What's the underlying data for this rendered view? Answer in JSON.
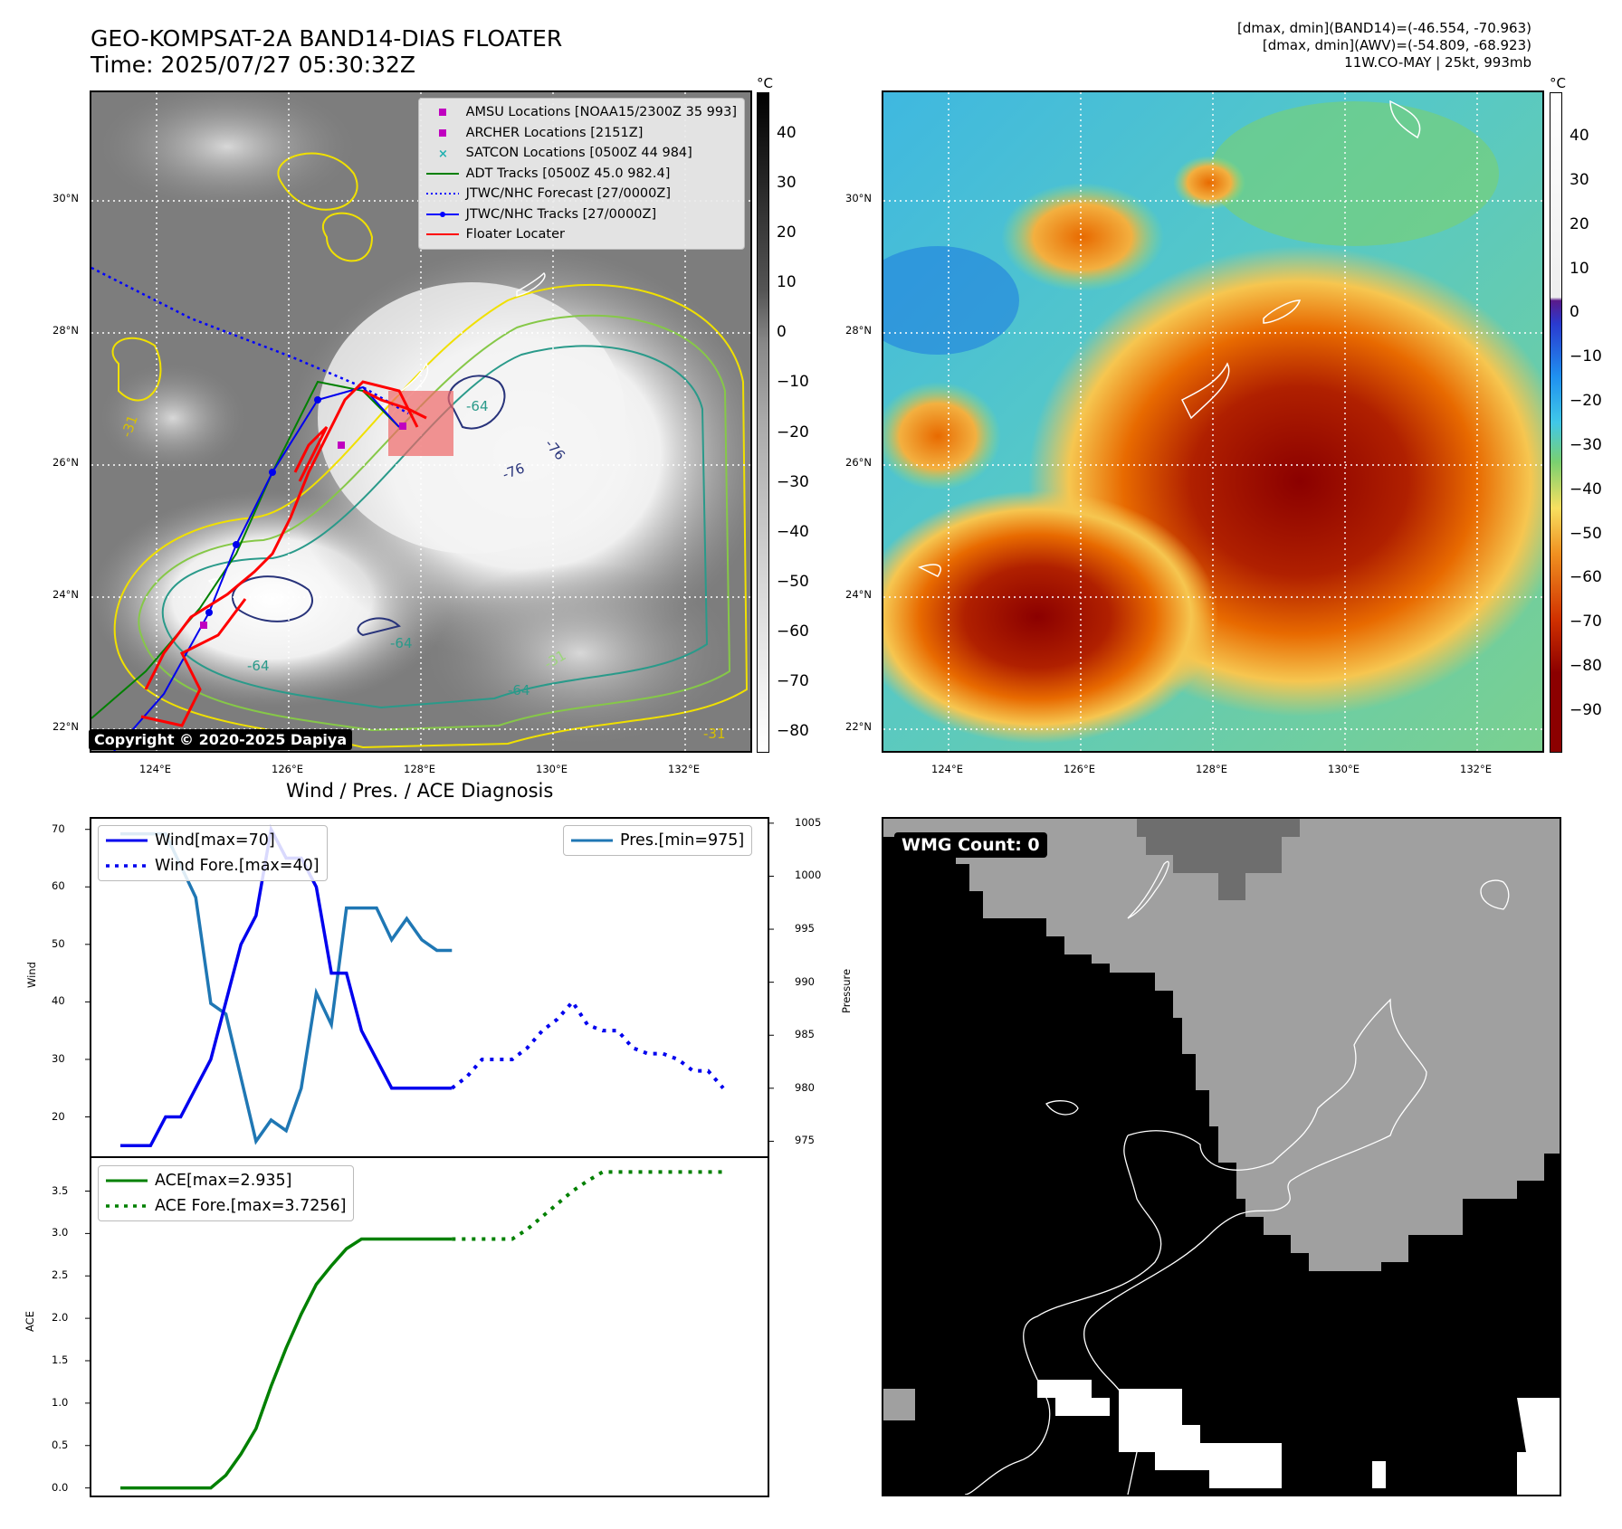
{
  "header": {
    "title_line1": "GEO-KOMPSAT-2A BAND14-DIAS FLOATER",
    "title_line2": "Time: 2025/07/27 05:30:32Z",
    "right_line1": "[dmax, dmin](BAND14)=(-46.554, -70.963)",
    "right_line2": "[dmax, dmin](AWV)=(-54.809, -68.923)",
    "right_line3": "11W.CO-MAY | 25kt, 993mb"
  },
  "maps": {
    "lat_labels": [
      "30°N",
      "28°N",
      "26°N",
      "24°N",
      "22°N"
    ],
    "lon_labels": [
      "124°E",
      "126°E",
      "128°E",
      "130°E",
      "132°E"
    ],
    "unit": "°C",
    "left_colorbar_ticks": [
      "40",
      "30",
      "20",
      "10",
      "0",
      "−10",
      "−20",
      "−30",
      "−40",
      "−50",
      "−60",
      "−70",
      "−80"
    ],
    "right_colorbar_ticks": [
      "40",
      "30",
      "20",
      "10",
      "0",
      "−10",
      "−20",
      "−30",
      "−40",
      "−50",
      "−60",
      "−70",
      "−80",
      "−90"
    ],
    "contour_labels": [
      "-64",
      "-76",
      "-76",
      "-64",
      "-31",
      "-64",
      "-64",
      "-31",
      "-31"
    ],
    "copyright": "Copyright © 2020-2025 Dapiya",
    "legend": [
      {
        "label": "AMSU Locations [NOAA15/2300Z 35 993]",
        "color": "#c000c0",
        "kind": "square"
      },
      {
        "label": "ARCHER Locations [2151Z]",
        "color": "#c000c0",
        "kind": "square"
      },
      {
        "label": "SATCON Locations [0500Z 44 984]",
        "color": "#20b0b0",
        "kind": "x"
      },
      {
        "label": "ADT Tracks [0500Z 45.0 982.4]",
        "color": "#008000",
        "kind": "line"
      },
      {
        "label": "JTWC/NHC Forecast [27/0000Z]",
        "color": "#0000ff",
        "kind": "dotted"
      },
      {
        "label": "JTWC/NHC Tracks [27/0000Z]",
        "color": "#0000ff",
        "kind": "dotline"
      },
      {
        "label": "Floater Locater",
        "color": "#ff0000",
        "kind": "line"
      }
    ]
  },
  "wmg": {
    "label": "WMG Count: 0"
  },
  "diag": {
    "title": "Wind / Pres. / ACE Diagnosis",
    "wind_ylabel": "Wind",
    "pres_ylabel": "Pressure",
    "ace_ylabel": "ACE",
    "wind_ticks": [
      "70",
      "60",
      "50",
      "40",
      "30",
      "20"
    ],
    "pres_ticks": [
      "1005",
      "1000",
      "995",
      "990",
      "985",
      "980",
      "975"
    ],
    "ace_ticks": [
      "3.5",
      "3.0",
      "2.5",
      "2.0",
      "1.5",
      "1.0",
      "0.5",
      "0.0"
    ],
    "legend_wind": "Wind[max=70]",
    "legend_wind_fore": "Wind Fore.[max=40]",
    "legend_pres": "Pres.[min=975]",
    "legend_ace": "ACE[max=2.935]",
    "legend_ace_fore": "ACE Fore.[max=3.7256]"
  },
  "chart_data": [
    {
      "type": "line",
      "title": "Wind / Pres. / ACE Diagnosis",
      "ylabel": "Wind",
      "ylim": [
        13,
        72
      ],
      "series": [
        {
          "name": "Wind[max=70]",
          "color": "#0000ee",
          "style": "solid",
          "x": [
            0,
            1,
            2,
            3,
            4,
            5,
            6,
            7,
            8,
            9,
            10,
            11,
            12,
            13,
            14,
            15,
            16,
            17,
            18,
            19,
            20,
            21,
            22
          ],
          "values": [
            15,
            15,
            15,
            20,
            20,
            25,
            30,
            40,
            50,
            55,
            70,
            65,
            65,
            60,
            45,
            45,
            35,
            30,
            25,
            25,
            25,
            25,
            25
          ]
        },
        {
          "name": "Wind Fore.[max=40]",
          "color": "#0000ee",
          "style": "dotted",
          "x": [
            22,
            23,
            24,
            25,
            26,
            27,
            28,
            29,
            30,
            31,
            32,
            33,
            34,
            35,
            36,
            37,
            38,
            39,
            40
          ],
          "values": [
            25,
            27,
            30,
            30,
            30,
            32,
            35,
            37,
            40,
            36,
            35,
            35,
            32,
            31,
            31,
            30,
            28,
            28,
            25
          ]
        }
      ]
    },
    {
      "type": "line",
      "ylabel": "Pressure",
      "ylim": [
        973.5,
        1005.5
      ],
      "series": [
        {
          "name": "Pres.[min=975]",
          "color": "#1f77b4",
          "style": "solid",
          "x": [
            0,
            1,
            2,
            3,
            4,
            5,
            6,
            7,
            8,
            9,
            10,
            11,
            12,
            13,
            14,
            15,
            16,
            17,
            18,
            19,
            20,
            21,
            22
          ],
          "values": [
            1004,
            1004,
            1004,
            1004,
            1001,
            998,
            988,
            987,
            981,
            975,
            977,
            976,
            980,
            989,
            986,
            997,
            997,
            997,
            994,
            996,
            994,
            993,
            993
          ]
        }
      ]
    },
    {
      "type": "line",
      "ylabel": "ACE",
      "ylim": [
        -0.1,
        3.9
      ],
      "series": [
        {
          "name": "ACE[max=2.935]",
          "color": "#008000",
          "style": "solid",
          "x": [
            0,
            1,
            2,
            3,
            4,
            5,
            6,
            7,
            8,
            9,
            10,
            11,
            12,
            13,
            14,
            15,
            16,
            17,
            18,
            19,
            20,
            21,
            22
          ],
          "values": [
            0,
            0,
            0,
            0,
            0,
            0,
            0,
            0.15,
            0.4,
            0.7,
            1.2,
            1.65,
            2.05,
            2.4,
            2.62,
            2.82,
            2.935,
            2.935,
            2.935,
            2.935,
            2.935,
            2.935,
            2.935
          ]
        },
        {
          "name": "ACE Fore.[max=3.7256]",
          "color": "#008000",
          "style": "dotted",
          "x": [
            22,
            23,
            24,
            25,
            26,
            27,
            28,
            29,
            30,
            31,
            32,
            33,
            34,
            35,
            36,
            37,
            38,
            39,
            40
          ],
          "values": [
            2.935,
            2.935,
            2.935,
            2.935,
            2.935,
            3.05,
            3.2,
            3.35,
            3.5,
            3.62,
            3.7256,
            3.7256,
            3.7256,
            3.7256,
            3.7256,
            3.7256,
            3.7256,
            3.7256,
            3.7256
          ]
        }
      ]
    }
  ]
}
